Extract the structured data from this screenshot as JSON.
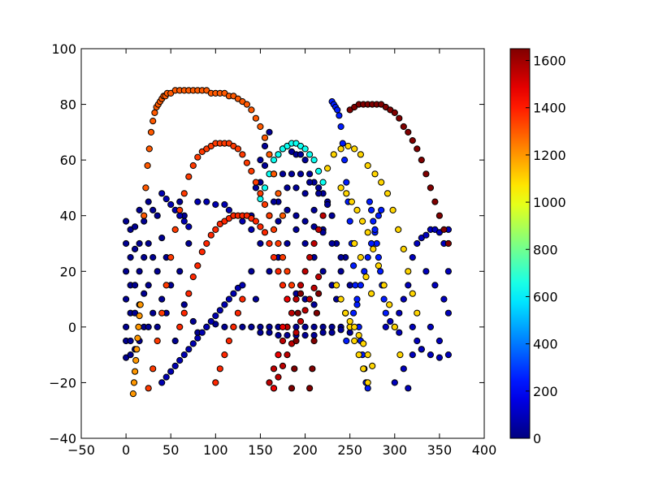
{
  "chart_data": {
    "type": "scatter",
    "title": "",
    "xlabel": "",
    "ylabel": "",
    "xlim": [
      -50,
      400
    ],
    "ylim": [
      -40,
      100
    ],
    "x_ticks": [
      -50,
      0,
      50,
      100,
      150,
      200,
      250,
      300,
      350,
      400
    ],
    "y_ticks": [
      -40,
      -20,
      0,
      20,
      40,
      60,
      80,
      100
    ],
    "grid": false,
    "colorbar": {
      "colormap": "jet",
      "range": [
        0,
        1650
      ],
      "ticks": [
        0,
        200,
        400,
        600,
        800,
        1000,
        1200,
        1400,
        1600
      ]
    },
    "marker_edge_color": "#000000",
    "series": [
      {
        "value": 30,
        "x": [
          0,
          0,
          0,
          0,
          0,
          0,
          0,
          5,
          5,
          5,
          5,
          5,
          5,
          10,
          10,
          10,
          10,
          10,
          15,
          15,
          15,
          15,
          15,
          20,
          20,
          20,
          20,
          25,
          25,
          25,
          25,
          30,
          30,
          30,
          35,
          35,
          35,
          40,
          40,
          45,
          45,
          50,
          55,
          60,
          60,
          65,
          65,
          70,
          75,
          80,
          90,
          100,
          110,
          120,
          130,
          140,
          150,
          160,
          170,
          180,
          190,
          200,
          210,
          220,
          230
        ],
        "y": [
          38,
          30,
          20,
          10,
          0,
          -5,
          -11,
          35,
          25,
          15,
          5,
          -5,
          -10,
          36,
          28,
          15,
          5,
          -8,
          42,
          30,
          20,
          8,
          -5,
          38,
          25,
          12,
          0,
          45,
          30,
          15,
          0,
          42,
          25,
          5,
          40,
          20,
          0,
          32,
          10,
          25,
          5,
          15,
          -5,
          45,
          20,
          40,
          8,
          30,
          2,
          -2,
          0,
          1,
          0,
          0,
          0,
          0,
          0,
          0,
          0,
          0,
          0,
          0,
          0,
          0,
          0
        ]
      },
      {
        "value": 40,
        "x": [
          140,
          140,
          140,
          145,
          145,
          150,
          150,
          155,
          160,
          160,
          165,
          170,
          175,
          180,
          185,
          190,
          195,
          200,
          205,
          210,
          215,
          220,
          225,
          230,
          235,
          235,
          240,
          240,
          245,
          245,
          250,
          250,
          150,
          160,
          170,
          180,
          190,
          200,
          210,
          220,
          230,
          240,
          160,
          170,
          180,
          190,
          200,
          210,
          220,
          230,
          170,
          180,
          190,
          200,
          210,
          220,
          180,
          190,
          200,
          210,
          160,
          170,
          180,
          190,
          200,
          210,
          220,
          230,
          240,
          150,
          155,
          165,
          175,
          185,
          195,
          205,
          215,
          225
        ],
        "y": [
          0,
          20,
          40,
          10,
          50,
          30,
          60,
          65,
          70,
          0,
          55,
          62,
          64,
          65,
          63,
          62,
          62,
          60,
          55,
          52,
          50,
          48,
          45,
          40,
          30,
          10,
          20,
          0,
          25,
          5,
          15,
          -2,
          -2,
          -2,
          -3,
          -3,
          -3,
          -3,
          -3,
          -2,
          -2,
          -1,
          20,
          25,
          30,
          35,
          30,
          25,
          20,
          15,
          45,
          50,
          50,
          48,
          42,
          35,
          10,
          12,
          10,
          8,
          40,
          38,
          42,
          40,
          38,
          36,
          34,
          30,
          25,
          52,
          58,
          45,
          55,
          55,
          55,
          52,
          48,
          44
        ]
      },
      {
        "value": 100,
        "x": [
          300,
          305,
          310,
          315,
          320,
          320,
          325,
          325,
          330,
          330,
          335,
          335,
          340,
          340,
          345,
          345,
          350,
          350,
          355,
          355,
          360,
          360,
          360,
          360,
          300,
          310,
          320,
          330,
          340,
          350,
          290,
          295,
          305,
          315
        ],
        "y": [
          0,
          5,
          10,
          15,
          25,
          0,
          30,
          -5,
          32,
          -8,
          33,
          20,
          35,
          0,
          35,
          15,
          34,
          -5,
          30,
          10,
          35,
          20,
          5,
          -10,
          -20,
          -15,
          -10,
          -8,
          -10,
          -11,
          0,
          2,
          -2,
          -22
        ]
      },
      {
        "value": 80,
        "x": [
          40,
          45,
          50,
          55,
          60,
          65,
          70,
          75,
          80,
          85,
          90,
          95,
          100,
          105,
          110,
          115,
          120,
          125,
          130,
          40,
          45,
          50,
          55,
          60,
          65,
          70,
          80,
          90,
          100,
          110,
          115,
          120,
          130,
          140
        ],
        "y": [
          -20,
          -18,
          -16,
          -14,
          -12,
          -10,
          -8,
          -6,
          -4,
          -2,
          0,
          2,
          4,
          6,
          8,
          10,
          12,
          14,
          15,
          48,
          46,
          44,
          42,
          40,
          38,
          36,
          45,
          45,
          44,
          44,
          42,
          40,
          38,
          35
        ]
      },
      {
        "value": 250,
        "x": [
          230,
          232,
          234,
          236,
          238,
          240,
          242,
          244,
          246,
          248,
          250,
          252,
          254,
          256,
          258,
          260,
          262,
          264,
          266,
          268,
          270,
          272,
          274,
          276,
          278,
          280,
          282,
          284,
          286,
          288,
          290,
          285,
          282,
          278,
          274,
          270,
          266,
          262,
          258,
          254,
          250,
          246
        ],
        "y": [
          81,
          80,
          79,
          78,
          76,
          72,
          66,
          60,
          52,
          45,
          38,
          30,
          22,
          15,
          8,
          0,
          -5,
          -10,
          -15,
          -20,
          -22,
          45,
          42,
          38,
          34,
          30,
          25,
          20,
          15,
          10,
          5,
          42,
          40,
          35,
          30,
          25,
          20,
          15,
          10,
          5,
          0,
          -5
        ]
      },
      {
        "value": 640,
        "x": [
          160,
          165,
          170,
          175,
          180,
          185,
          190,
          195,
          200,
          205,
          210,
          215,
          220,
          155,
          150
        ],
        "y": [
          55,
          60,
          62,
          64,
          65,
          66,
          66,
          65,
          64,
          62,
          60,
          56,
          52,
          50,
          46
        ]
      },
      {
        "value": 1100,
        "x": [
          225,
          232,
          240,
          248,
          255,
          262,
          270,
          278,
          285,
          292,
          298,
          304,
          310,
          315,
          320,
          325,
          240,
          246,
          252,
          258,
          264,
          270,
          276,
          282,
          288,
          294,
          300,
          306,
          235,
          240,
          245,
          250,
          255,
          260,
          265,
          270,
          245,
          250,
          255,
          260,
          265,
          270,
          275,
          255,
          262,
          268,
          274
        ],
        "y": [
          57,
          62,
          64,
          65,
          64,
          62,
          58,
          55,
          52,
          48,
          42,
          35,
          28,
          20,
          12,
          5,
          50,
          48,
          45,
          42,
          38,
          34,
          28,
          22,
          15,
          8,
          0,
          -10,
          15,
          10,
          5,
          0,
          -5,
          -10,
          -15,
          -20,
          5,
          2,
          0,
          -3,
          -6,
          -10,
          -14,
          30,
          25,
          18,
          12
        ]
      },
      {
        "value": 1300,
        "x": [
          20,
          22,
          24,
          26,
          28,
          30,
          32,
          34,
          36,
          38,
          40,
          42,
          44,
          46,
          50,
          55,
          60,
          65,
          70,
          75,
          80,
          85,
          90,
          95,
          100,
          105,
          110,
          115,
          120,
          125,
          130,
          135,
          140,
          145,
          150,
          155,
          160,
          165,
          170,
          175
        ],
        "y": [
          40,
          50,
          58,
          64,
          70,
          74,
          77,
          79,
          80,
          81,
          82,
          83,
          83,
          84,
          84,
          85,
          85,
          85,
          85,
          85,
          85,
          85,
          85,
          84,
          84,
          84,
          84,
          83,
          83,
          82,
          81,
          80,
          78,
          75,
          72,
          68,
          62,
          55,
          48,
          40
        ]
      },
      {
        "value": 1350,
        "x": [
          25,
          30,
          35,
          40,
          45,
          50,
          55,
          60,
          65,
          70,
          75,
          80,
          85,
          90,
          95,
          100,
          105,
          110,
          115,
          120,
          125,
          130,
          135,
          140,
          145,
          150,
          155,
          160,
          165,
          170,
          175,
          180,
          185,
          190
        ],
        "y": [
          -22,
          -15,
          -5,
          5,
          15,
          25,
          35,
          42,
          48,
          54,
          58,
          61,
          63,
          64,
          65,
          66,
          66,
          66,
          66,
          65,
          64,
          62,
          59,
          56,
          52,
          48,
          44,
          40,
          35,
          30,
          25,
          20,
          15,
          10
        ]
      },
      {
        "value": 1380,
        "x": [
          60,
          65,
          70,
          75,
          80,
          85,
          90,
          95,
          100,
          105,
          110,
          115,
          120,
          125,
          130,
          135,
          140,
          145,
          150,
          155,
          160,
          165,
          170,
          175,
          180,
          100,
          105,
          110,
          115,
          120,
          125,
          130
        ],
        "y": [
          0,
          5,
          12,
          18,
          22,
          27,
          30,
          33,
          35,
          37,
          38,
          39,
          40,
          40,
          40,
          40,
          39,
          38,
          36,
          34,
          30,
          25,
          20,
          15,
          10,
          -20,
          -15,
          -10,
          -5,
          0,
          5,
          10
        ]
      },
      {
        "value": 1550,
        "x": [
          160,
          165,
          170,
          175,
          180,
          185,
          190,
          195,
          200,
          205,
          210,
          215,
          220,
          165,
          170,
          175,
          180,
          185,
          190,
          195,
          200,
          205,
          210,
          215
        ],
        "y": [
          -20,
          -15,
          -10,
          -5,
          0,
          5,
          10,
          15,
          20,
          25,
          30,
          35,
          40,
          -22,
          -18,
          -14,
          -10,
          -6,
          -2,
          2,
          6,
          10,
          14,
          18
        ]
      },
      {
        "value": 1650,
        "x": [
          250,
          255,
          260,
          265,
          270,
          275,
          280,
          285,
          290,
          295,
          300,
          305,
          310,
          315,
          320,
          325,
          330,
          335,
          340,
          345,
          350,
          355,
          360,
          185,
          188,
          190,
          192,
          195,
          205,
          208,
          210,
          213,
          215
        ],
        "y": [
          78,
          79,
          80,
          80,
          80,
          80,
          80,
          80,
          79,
          78,
          77,
          75,
          72,
          70,
          67,
          64,
          60,
          55,
          50,
          45,
          40,
          35,
          30,
          -22,
          -15,
          -5,
          5,
          12,
          -22,
          -15,
          -5,
          5,
          12
        ]
      },
      {
        "value": 1470,
        "x": [
          165,
          170,
          175,
          180
        ],
        "y": [
          -22,
          -10,
          0,
          10
        ]
      },
      {
        "value": 1200,
        "x": [
          8,
          9,
          10,
          11,
          12,
          13,
          14,
          15,
          16
        ],
        "y": [
          -24,
          -20,
          -16,
          -12,
          -8,
          -4,
          0,
          4,
          8
        ]
      }
    ]
  }
}
